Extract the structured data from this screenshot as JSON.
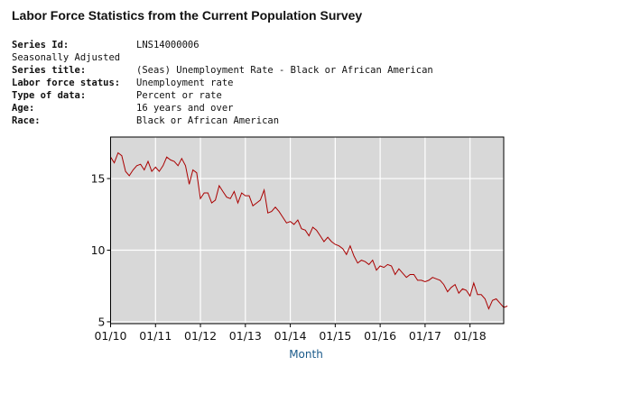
{
  "header": {
    "title": "Labor Force Statistics from the Current Population Survey"
  },
  "meta": [
    {
      "label": "Series Id:",
      "value": "LNS14000006"
    },
    {
      "label": "Seasonally Adjusted",
      "value": ""
    },
    {
      "label": "Series title:",
      "value": "(Seas) Unemployment Rate - Black or African American"
    },
    {
      "label": "Labor force status:",
      "value": "Unemployment rate"
    },
    {
      "label": "Type of data:",
      "value": "Percent or rate"
    },
    {
      "label": "Age:",
      "value": "16 years and over"
    },
    {
      "label": "Race:",
      "value": "Black or African American"
    }
  ],
  "chart_data": {
    "type": "line",
    "title": "",
    "xlabel": "Month",
    "ylabel": "",
    "ylim": [
      4.87,
      17.9
    ],
    "yticks": [
      5,
      10,
      15
    ],
    "xticks": [
      "01/10",
      "01/11",
      "01/12",
      "01/13",
      "01/14",
      "01/15",
      "01/16",
      "01/17",
      "01/18"
    ],
    "x_start": "2010-01",
    "x_end_axis": "2018-10",
    "grid": true,
    "background": "#d8d8d8",
    "line_color": "#aa0000",
    "series": [
      {
        "values": [
          16.5,
          16.1,
          16.8,
          16.6,
          15.5,
          15.2,
          15.6,
          15.9,
          16.0,
          15.6,
          16.2,
          15.5,
          15.8,
          15.5,
          15.9,
          16.5,
          16.3,
          16.2,
          15.9,
          16.4,
          15.9,
          14.6,
          15.6,
          15.4,
          13.6,
          14.0,
          14.0,
          13.3,
          13.5,
          14.5,
          14.1,
          13.7,
          13.6,
          14.1,
          13.3,
          14.0,
          13.8,
          13.8,
          13.1,
          13.3,
          13.5,
          14.2,
          12.6,
          12.7,
          13.0,
          12.7,
          12.3,
          11.9,
          12.0,
          11.8,
          12.1,
          11.5,
          11.4,
          11.0,
          11.6,
          11.4,
          11.0,
          10.6,
          10.9,
          10.6,
          10.4,
          10.3,
          10.1,
          9.7,
          10.3,
          9.6,
          9.1,
          9.3,
          9.2,
          9.0,
          9.3,
          8.6,
          8.9,
          8.8,
          9.0,
          8.9,
          8.3,
          8.7,
          8.4,
          8.1,
          8.3,
          8.3,
          7.9,
          7.9,
          7.8,
          7.9,
          8.1,
          8.0,
          7.9,
          7.6,
          7.1,
          7.4,
          7.6,
          7.0,
          7.3,
          7.2,
          6.8,
          7.7,
          6.9,
          6.9,
          6.6,
          5.9,
          6.5,
          6.6,
          6.3,
          6.0,
          6.1
        ]
      }
    ]
  }
}
